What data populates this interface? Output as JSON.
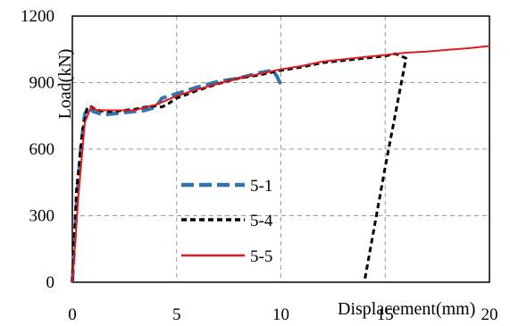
{
  "chart_data": {
    "type": "line",
    "title": "",
    "xlabel": "Displacement(mm)",
    "ylabel": "Load(kN)",
    "xlim": [
      0,
      20
    ],
    "ylim": [
      0,
      1200
    ],
    "x_ticks": [
      0,
      5,
      10,
      15,
      20
    ],
    "y_ticks": [
      0,
      300,
      600,
      900,
      1200
    ],
    "x_tick_labels": [
      "0",
      "5",
      "10",
      "15",
      "20"
    ],
    "y_tick_labels": [
      "0",
      "300",
      "600",
      "900",
      "1200"
    ],
    "grid": true,
    "legend_position": "center-left",
    "series": [
      {
        "name": "5-1",
        "color": "#2e75b6",
        "style": "long-dash",
        "points": [
          [
            0,
            0
          ],
          [
            0.2,
            350
          ],
          [
            0.4,
            600
          ],
          [
            0.6,
            760
          ],
          [
            0.8,
            790
          ],
          [
            1.0,
            770
          ],
          [
            1.5,
            755
          ],
          [
            2.0,
            760
          ],
          [
            2.5,
            765
          ],
          [
            3.0,
            770
          ],
          [
            3.5,
            775
          ],
          [
            4.0,
            790
          ],
          [
            4.3,
            830
          ],
          [
            5.0,
            850
          ],
          [
            6.0,
            880
          ],
          [
            7.0,
            905
          ],
          [
            8.0,
            920
          ],
          [
            9.0,
            945
          ],
          [
            9.6,
            955
          ],
          [
            9.8,
            930
          ],
          [
            10.0,
            890
          ]
        ]
      },
      {
        "name": "5-4",
        "color": "#000000",
        "style": "short-dash",
        "points": [
          [
            0,
            0
          ],
          [
            0.2,
            420
          ],
          [
            0.5,
            690
          ],
          [
            0.7,
            780
          ],
          [
            0.85,
            795
          ],
          [
            1.1,
            780
          ],
          [
            1.5,
            770
          ],
          [
            2.0,
            770
          ],
          [
            2.5,
            775
          ],
          [
            3.0,
            780
          ],
          [
            3.5,
            790
          ],
          [
            4.0,
            795
          ],
          [
            4.3,
            790
          ],
          [
            4.6,
            805
          ],
          [
            5.0,
            830
          ],
          [
            6.0,
            865
          ],
          [
            7.0,
            895
          ],
          [
            8.0,
            920
          ],
          [
            9.0,
            935
          ],
          [
            10.0,
            955
          ],
          [
            11.0,
            970
          ],
          [
            12.0,
            990
          ],
          [
            13.0,
            1000
          ],
          [
            14.0,
            1010
          ],
          [
            15.0,
            1020
          ],
          [
            15.5,
            1030
          ],
          [
            16.0,
            1010
          ],
          [
            15.0,
            520
          ],
          [
            14.0,
            0
          ]
        ]
      },
      {
        "name": "5-5",
        "color": "#e31a1c",
        "style": "solid",
        "points": [
          [
            0,
            0
          ],
          [
            0.3,
            400
          ],
          [
            0.6,
            720
          ],
          [
            0.9,
            790
          ],
          [
            1.2,
            775
          ],
          [
            1.6,
            775
          ],
          [
            2.0,
            775
          ],
          [
            3.0,
            775
          ],
          [
            3.5,
            790
          ],
          [
            4.0,
            800
          ],
          [
            5.0,
            840
          ],
          [
            6.0,
            870
          ],
          [
            7.0,
            895
          ],
          [
            8.0,
            920
          ],
          [
            9.0,
            940
          ],
          [
            10.0,
            960
          ],
          [
            11.0,
            975
          ],
          [
            12.0,
            995
          ],
          [
            13.0,
            1005
          ],
          [
            14.0,
            1015
          ],
          [
            15.0,
            1025
          ],
          [
            16.0,
            1035
          ],
          [
            17.0,
            1040
          ],
          [
            18.0,
            1048
          ],
          [
            19.0,
            1055
          ],
          [
            20.0,
            1065
          ]
        ]
      }
    ]
  }
}
